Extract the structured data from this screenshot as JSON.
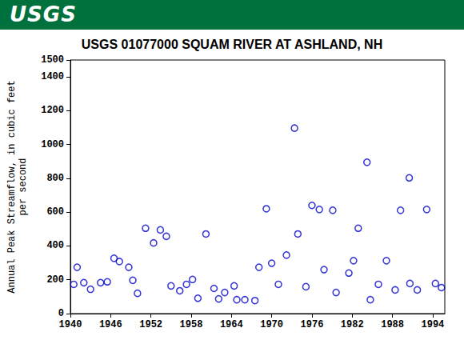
{
  "banner": "USGS",
  "chart_data": {
    "type": "scatter",
    "title": "USGS 01077000 SQUAM RIVER AT ASHLAND, NH",
    "ylabel": "Annual Peak Streamflow, in cubic feet\nper second",
    "x": [
      1940.5,
      1941,
      1942,
      1943,
      1944.5,
      1945.5,
      1946.5,
      1947.3,
      1948.7,
      1949.3,
      1950,
      1951.2,
      1952.4,
      1953.4,
      1954.3,
      1955,
      1956.3,
      1957.3,
      1958.2,
      1959,
      1960.2,
      1961.4,
      1962.1,
      1963,
      1964.4,
      1964.8,
      1966,
      1967.5,
      1968.1,
      1969.2,
      1970,
      1971,
      1972.2,
      1973.4,
      1973.9,
      1975.1,
      1976,
      1977.1,
      1977.8,
      1979.1,
      1979.6,
      1981.5,
      1982.2,
      1982.9,
      1984.2,
      1984.7,
      1985.9,
      1987.1,
      1988.4,
      1989.2,
      1990.5,
      1990.6,
      1991.7,
      1993.1,
      1994.4,
      1995.3
    ],
    "values": [
      173,
      274,
      183,
      144,
      183,
      188,
      327,
      308,
      274,
      197,
      120,
      505,
      418,
      495,
      457,
      164,
      135,
      173,
      202,
      91,
      471,
      149,
      87,
      125,
      164,
      82,
      82,
      77,
      274,
      620,
      298,
      173,
      346,
      1097,
      471,
      159,
      640,
      616,
      260,
      611,
      125,
      240,
      313,
      505,
      895,
      82,
      173,
      313,
      140,
      611,
      803,
      178,
      140,
      616,
      178,
      154
    ],
    "color": "#0000cc",
    "marker": "circle_open",
    "xlim": [
      1940,
      1995.8
    ],
    "xticks": [
      1940,
      1946,
      1952,
      1958,
      1964,
      1970,
      1976,
      1982,
      1988,
      1994
    ],
    "ylim": [
      0,
      1500
    ],
    "yticks": [
      0,
      200,
      400,
      600,
      800,
      1000,
      1200,
      1400
    ],
    "grid": false
  }
}
